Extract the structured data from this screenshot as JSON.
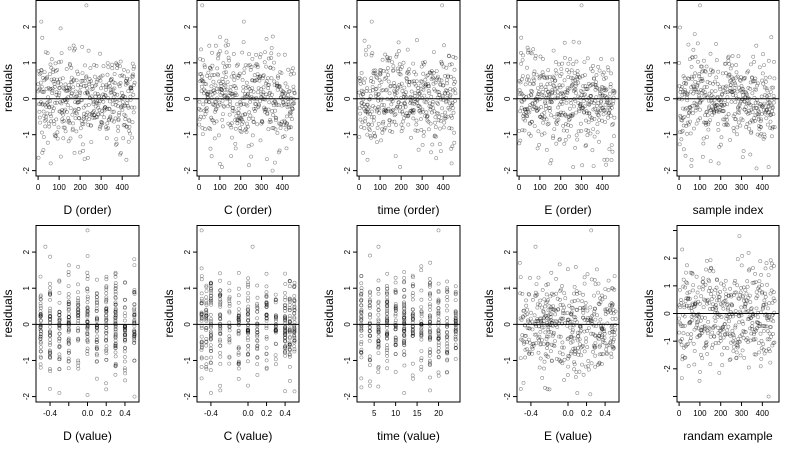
{
  "chart_data": [
    {
      "type": "scatter",
      "xlabel": "D (order)",
      "ylabel": "residuals",
      "xlim": [
        -10,
        480
      ],
      "ylim": [
        -2.15,
        2.75
      ],
      "xticks": [
        0,
        100,
        200,
        300,
        400
      ],
      "xtick_labels": [
        "0",
        "100",
        "200",
        "300",
        "400"
      ],
      "yticks": [
        -2,
        -1,
        0,
        1,
        2
      ],
      "ytick_labels": [
        "-2",
        "-1",
        "0",
        "1",
        "2"
      ],
      "hline": 0,
      "x_kind": "index",
      "x_values": [],
      "y_range": [
        -2.0,
        2.6
      ],
      "points": [
        {
          "x": 15,
          "y": 2.15
        },
        {
          "x": 230,
          "y": 2.6
        },
        {
          "x": 20,
          "y": -1.5
        },
        {
          "x": 60,
          "y": -1.8
        },
        {
          "x": 420,
          "y": -1.7
        },
        {
          "x": 150,
          "y": 1.4
        }
      ]
    },
    {
      "type": "scatter",
      "xlabel": "C (order)",
      "ylabel": "residuals",
      "xlim": [
        -10,
        480
      ],
      "ylim": [
        -2.15,
        2.75
      ],
      "xticks": [
        0,
        100,
        200,
        300,
        400
      ],
      "xtick_labels": [
        "0",
        "100",
        "200",
        "300",
        "400"
      ],
      "yticks": [
        -2,
        -1,
        0,
        1,
        2
      ],
      "ytick_labels": [
        "-2",
        "-1",
        "0",
        "1",
        "2"
      ],
      "hline": 0,
      "x_kind": "index",
      "x_values": [],
      "y_range": [
        -2.0,
        2.6
      ],
      "points": [
        {
          "x": 15,
          "y": 2.6
        },
        {
          "x": 215,
          "y": 2.15
        },
        {
          "x": 110,
          "y": -1.9
        },
        {
          "x": 240,
          "y": -1.85
        },
        {
          "x": 60,
          "y": -1.6
        }
      ]
    },
    {
      "type": "scatter",
      "xlabel": "time (order)",
      "ylabel": "residuals",
      "xlim": [
        -10,
        480
      ],
      "ylim": [
        -2.15,
        2.75
      ],
      "xticks": [
        0,
        100,
        200,
        300,
        400
      ],
      "xtick_labels": [
        "0",
        "100",
        "200",
        "300",
        "400"
      ],
      "yticks": [
        -2,
        -1,
        0,
        1,
        2
      ],
      "ytick_labels": [
        "-2",
        "-1",
        "0",
        "1",
        "2"
      ],
      "hline": 0,
      "x_kind": "index",
      "x_values": [],
      "y_range": [
        -2.0,
        2.6
      ],
      "points": [
        {
          "x": 60,
          "y": 2.15
        },
        {
          "x": 395,
          "y": 2.6
        },
        {
          "x": 195,
          "y": -1.9
        },
        {
          "x": 40,
          "y": -1.7
        },
        {
          "x": 440,
          "y": -1.8
        }
      ]
    },
    {
      "type": "scatter",
      "xlabel": "E (order)",
      "ylabel": "residuals",
      "xlim": [
        -10,
        480
      ],
      "ylim": [
        -2.15,
        2.75
      ],
      "xticks": [
        0,
        100,
        200,
        300,
        400
      ],
      "xtick_labels": [
        "0",
        "100",
        "200",
        "300",
        "400"
      ],
      "yticks": [
        -2,
        -1,
        0,
        1,
        2
      ],
      "ytick_labels": [
        "-2",
        "-1",
        "0",
        "1",
        "2"
      ],
      "hline": 0,
      "x_kind": "index",
      "x_values": [],
      "y_range": [
        -2.0,
        2.6
      ],
      "points": [
        {
          "x": 10,
          "y": 1.7
        },
        {
          "x": 300,
          "y": 2.6
        },
        {
          "x": 150,
          "y": -1.8
        },
        {
          "x": 260,
          "y": -1.9
        },
        {
          "x": 410,
          "y": -1.7
        }
      ]
    },
    {
      "type": "scatter",
      "xlabel": "sample index",
      "ylabel": "residuals",
      "xlim": [
        -10,
        480
      ],
      "ylim": [
        -2.15,
        2.75
      ],
      "xticks": [
        0,
        100,
        200,
        300,
        400
      ],
      "xtick_labels": [
        "0",
        "100",
        "200",
        "300",
        "400"
      ],
      "yticks": [
        -2,
        -1,
        0,
        1,
        2
      ],
      "ytick_labels": [
        "-2",
        "-1",
        "0",
        "1",
        "2"
      ],
      "hline": 0,
      "x_kind": "index",
      "x_values": [],
      "y_range": [
        -2.0,
        2.6
      ],
      "points": [
        {
          "x": 100,
          "y": 2.6
        },
        {
          "x": 60,
          "y": -1.7
        },
        {
          "x": 190,
          "y": -1.8
        },
        {
          "x": 430,
          "y": -1.9
        }
      ]
    },
    {
      "type": "scatter",
      "xlabel": "D (value)",
      "ylabel": "residuals",
      "xlim": [
        -0.55,
        0.55
      ],
      "ylim": [
        -2.15,
        2.75
      ],
      "xticks": [
        -0.4,
        -0.2,
        0.0,
        0.2,
        0.4
      ],
      "xtick_labels": [
        "-0.4",
        "",
        "0.0",
        "0.2",
        "0.4"
      ],
      "yticks": [
        -2,
        -1,
        0,
        1,
        2
      ],
      "ytick_labels": [
        "-2",
        "-1",
        "0",
        "1",
        "2"
      ],
      "hline": 0,
      "x_kind": "discrete",
      "x_values": [
        -0.5,
        -0.4,
        -0.3,
        -0.2,
        -0.1,
        0.0,
        0.1,
        0.2,
        0.3,
        0.4,
        0.5
      ],
      "y_range": [
        -2.0,
        2.6
      ],
      "points": [
        {
          "x": -0.45,
          "y": 2.15
        },
        {
          "x": 0.0,
          "y": 2.6
        },
        {
          "x": -0.3,
          "y": -1.9
        },
        {
          "x": 0.2,
          "y": -1.8
        }
      ]
    },
    {
      "type": "scatter",
      "xlabel": "C (value)",
      "ylabel": "residuals",
      "xlim": [
        -0.55,
        0.55
      ],
      "ylim": [
        -2.15,
        2.75
      ],
      "xticks": [
        -0.4,
        0.0,
        0.2,
        0.4
      ],
      "xtick_labels": [
        "-0.4",
        "0.0",
        "0.2",
        "0.4"
      ],
      "yticks": [
        -2,
        -1,
        0,
        1,
        2
      ],
      "ytick_labels": [
        "-2",
        "-1",
        "0",
        "1",
        "2"
      ],
      "hline": 0,
      "x_kind": "discrete",
      "x_values": [
        -0.5,
        -0.45,
        -0.4,
        -0.3,
        -0.2,
        -0.1,
        0.0,
        0.1,
        0.2,
        0.3,
        0.4,
        0.45,
        0.5
      ],
      "y_range": [
        -2.0,
        2.6
      ],
      "points": [
        {
          "x": -0.5,
          "y": 2.6
        },
        {
          "x": 0.05,
          "y": 2.15
        },
        {
          "x": -0.4,
          "y": -1.9
        },
        {
          "x": 0.4,
          "y": -1.85
        }
      ]
    },
    {
      "type": "scatter",
      "xlabel": "time (value)",
      "ylabel": "residuals",
      "xlim": [
        1,
        25
      ],
      "ylim": [
        -2.15,
        2.75
      ],
      "xticks": [
        5,
        10,
        15,
        20
      ],
      "xtick_labels": [
        "5",
        "10",
        "15",
        "20"
      ],
      "yticks": [
        -2,
        -1,
        0,
        1,
        2
      ],
      "ytick_labels": [
        "-2",
        "-1",
        "0",
        "1",
        "2"
      ],
      "hline": 0,
      "x_kind": "discrete",
      "x_values": [
        2,
        4,
        6,
        8,
        10,
        12,
        14,
        16,
        18,
        20,
        22,
        24
      ],
      "y_range": [
        -2.0,
        2.6
      ],
      "points": [
        {
          "x": 6,
          "y": 2.15
        },
        {
          "x": 20,
          "y": 2.6
        },
        {
          "x": 12,
          "y": -1.9
        },
        {
          "x": 4,
          "y": -1.7
        }
      ]
    },
    {
      "type": "scatter",
      "xlabel": "E (value)",
      "ylabel": "residuals",
      "xlim": [
        -0.55,
        0.55
      ],
      "ylim": [
        -2.15,
        2.75
      ],
      "xticks": [
        -0.4,
        0.0,
        0.2,
        0.4
      ],
      "xtick_labels": [
        "-0.4",
        "0.0",
        "0.2",
        "0.4"
      ],
      "yticks": [
        -2,
        -1,
        0,
        1,
        2
      ],
      "ytick_labels": [
        "-2",
        "-1",
        "0",
        "1",
        "2"
      ],
      "hline": 0,
      "x_kind": "continuous",
      "x_values": [],
      "y_range": [
        -2.0,
        2.6
      ],
      "points": [
        {
          "x": -0.52,
          "y": 1.7
        },
        {
          "x": -0.35,
          "y": 2.15
        },
        {
          "x": 0.25,
          "y": 2.6
        },
        {
          "x": -0.2,
          "y": -1.8
        },
        {
          "x": 0.1,
          "y": -1.9
        }
      ]
    },
    {
      "type": "scatter",
      "xlabel": "randam example",
      "ylabel": "residuals",
      "xlim": [
        -10,
        480
      ],
      "ylim": [
        -3.2,
        3.2
      ],
      "xticks": [
        0,
        100,
        200,
        300,
        400
      ],
      "xtick_labels": [
        "0",
        "100",
        "200",
        "300",
        "400"
      ],
      "yticks": [
        -3,
        -2,
        -1,
        0,
        1,
        2,
        3
      ],
      "ytick_labels": [
        "",
        "-2",
        "-1",
        "0",
        "1",
        "2",
        ""
      ],
      "hline": 0,
      "x_kind": "index",
      "x_values": [],
      "y_range": [
        -3.0,
        3.0
      ],
      "points": [
        {
          "x": 290,
          "y": 2.8
        },
        {
          "x": 430,
          "y": -3.0
        }
      ]
    }
  ]
}
